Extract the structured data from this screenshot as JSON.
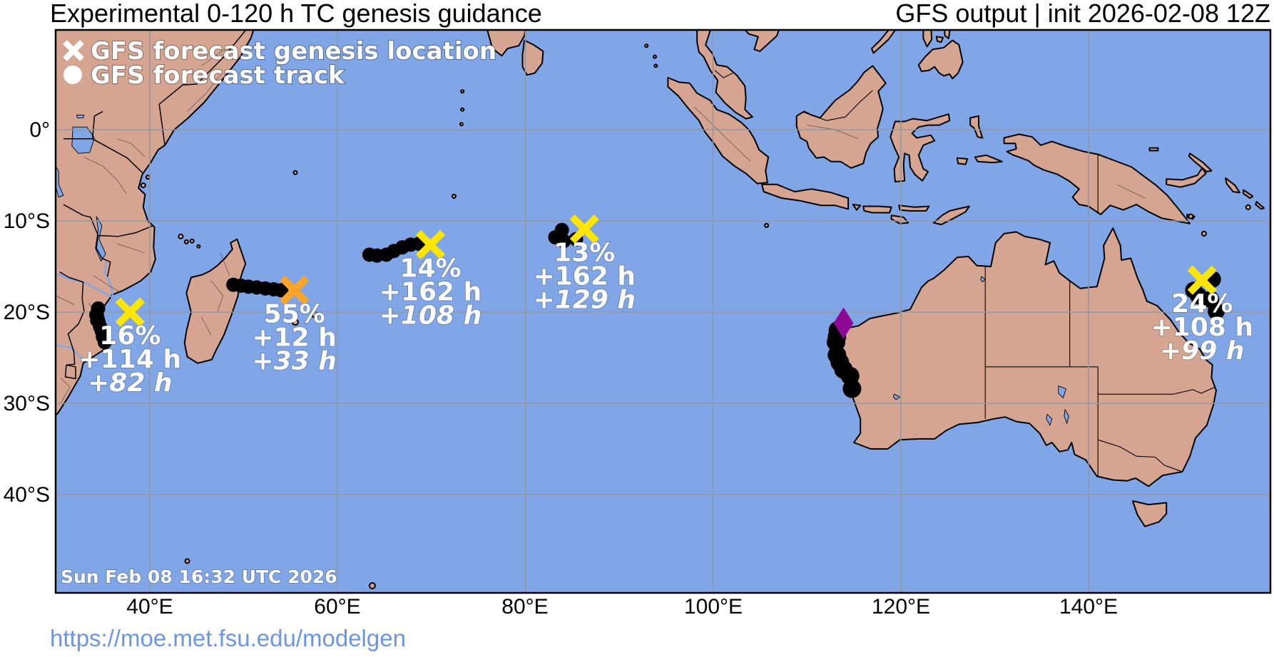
{
  "header": {
    "title_left": "Experimental 0-120 h TC genesis guidance",
    "title_right": "GFS output | init 2026-02-08 12Z"
  },
  "legend": {
    "genesis": "GFS forecast genesis location",
    "track": "GFS forecast track"
  },
  "map": {
    "timestamp": "Sun Feb 08 16:32 UTC 2026"
  },
  "footer": {
    "url": "https://moe.met.fsu.edu/modelgen"
  },
  "axes": {
    "lat_ticks": [
      "0°",
      "10°S",
      "20°S",
      "30°S",
      "40°S"
    ],
    "lon_ticks": [
      "40°E",
      "60°E",
      "80°E",
      "100°E",
      "120°E",
      "140°E"
    ]
  },
  "colors": {
    "ocean": "#81A6E8",
    "land": "#D6A592",
    "grid": "#9298A0",
    "genesis_yellow": "#FFE600",
    "genesis_orange": "#FFA428",
    "diamond_purple": "#8C0996",
    "track_dot": "#000000",
    "url_link": "#6B96E8"
  },
  "chart_data": {
    "type": "map",
    "projection": "equirectangular",
    "lon_range": [
      30.0,
      158.6
    ],
    "lat_range": [
      -50.8,
      10.9
    ],
    "grid_lon": [
      40,
      60,
      80,
      100,
      120,
      140
    ],
    "grid_lat": [
      0,
      -10,
      -20,
      -30,
      -40
    ],
    "grid_on": true,
    "systems": [
      {
        "id": 1,
        "genesis": {
          "lon": 37.9,
          "lat": -20.0,
          "marker": "x",
          "color_key": "genesis_yellow"
        },
        "probability": "16%",
        "lead_1": "+114 h",
        "lead_2": "+82 h",
        "dot_r": 10,
        "track": [
          [
            34.5,
            -19.6
          ],
          [
            34.3,
            -20.3
          ],
          [
            34.4,
            -20.9
          ],
          [
            34.7,
            -21.6
          ],
          [
            34.9,
            -22.1
          ],
          [
            35.0,
            -22.7
          ],
          [
            35.2,
            -23.3
          ]
        ]
      },
      {
        "id": 2,
        "genesis": {
          "lon": 55.4,
          "lat": -17.6,
          "marker": "x",
          "color_key": "genesis_orange"
        },
        "probability": "55%",
        "lead_1": "+12 h",
        "lead_2": "+33 h",
        "dot_r": 10,
        "track": [
          [
            48.9,
            -17.0
          ],
          [
            49.7,
            -17.1
          ],
          [
            50.5,
            -17.2
          ],
          [
            51.4,
            -17.3
          ],
          [
            52.3,
            -17.4
          ],
          [
            53.2,
            -17.5
          ],
          [
            54.0,
            -17.6
          ]
        ]
      },
      {
        "id": 3,
        "genesis": {
          "lon": 69.9,
          "lat": -12.6,
          "marker": "x",
          "color_key": "genesis_yellow"
        },
        "probability": "14%",
        "lead_1": "+162 h",
        "lead_2": "+108 h",
        "dot_r": 10,
        "track": [
          [
            63.4,
            -13.7
          ],
          [
            64.2,
            -13.8
          ],
          [
            65.2,
            -13.7
          ],
          [
            66.0,
            -13.3
          ],
          [
            66.9,
            -12.9
          ],
          [
            67.8,
            -12.6
          ],
          [
            68.7,
            -12.5
          ]
        ]
      },
      {
        "id": 4,
        "genesis": {
          "lon": 86.3,
          "lat": -10.9,
          "marker": "x",
          "color_key": "genesis_yellow"
        },
        "probability": "13%",
        "lead_1": "+162 h",
        "lead_2": "+129 h",
        "dot_r": 10,
        "track": [
          [
            83.9,
            -11.0
          ],
          [
            83.2,
            -11.8
          ],
          [
            84.1,
            -12.2
          ],
          [
            85.4,
            -12.0
          ]
        ]
      },
      {
        "id": 5,
        "genesis": {
          "lon": 152.1,
          "lat": -16.5,
          "marker": "x",
          "color_key": "genesis_yellow"
        },
        "probability": "24%",
        "lead_1": "+108 h",
        "lead_2": "+99 h",
        "dot_r": 12,
        "track": [
          [
            153.2,
            -16.4
          ],
          [
            151.2,
            -17.6
          ],
          [
            151.7,
            -18.2
          ],
          [
            153.0,
            -18.6
          ],
          [
            153.6,
            -19.9
          ]
        ]
      },
      {
        "id": 6,
        "genesis": {
          "lon": 113.9,
          "lat": -21.2,
          "marker": "diamond",
          "color_key": "diamond_purple"
        },
        "probability": "",
        "lead_1": "",
        "lead_2": "",
        "dot_r": 13,
        "track": [
          [
            113.3,
            -22.0
          ],
          [
            113.2,
            -22.7
          ],
          [
            113.1,
            -23.3
          ],
          [
            113.2,
            -24.7
          ],
          [
            113.5,
            -25.5
          ],
          [
            113.9,
            -26.3
          ],
          [
            114.6,
            -27.0
          ],
          [
            114.8,
            -28.4
          ]
        ]
      }
    ]
  }
}
